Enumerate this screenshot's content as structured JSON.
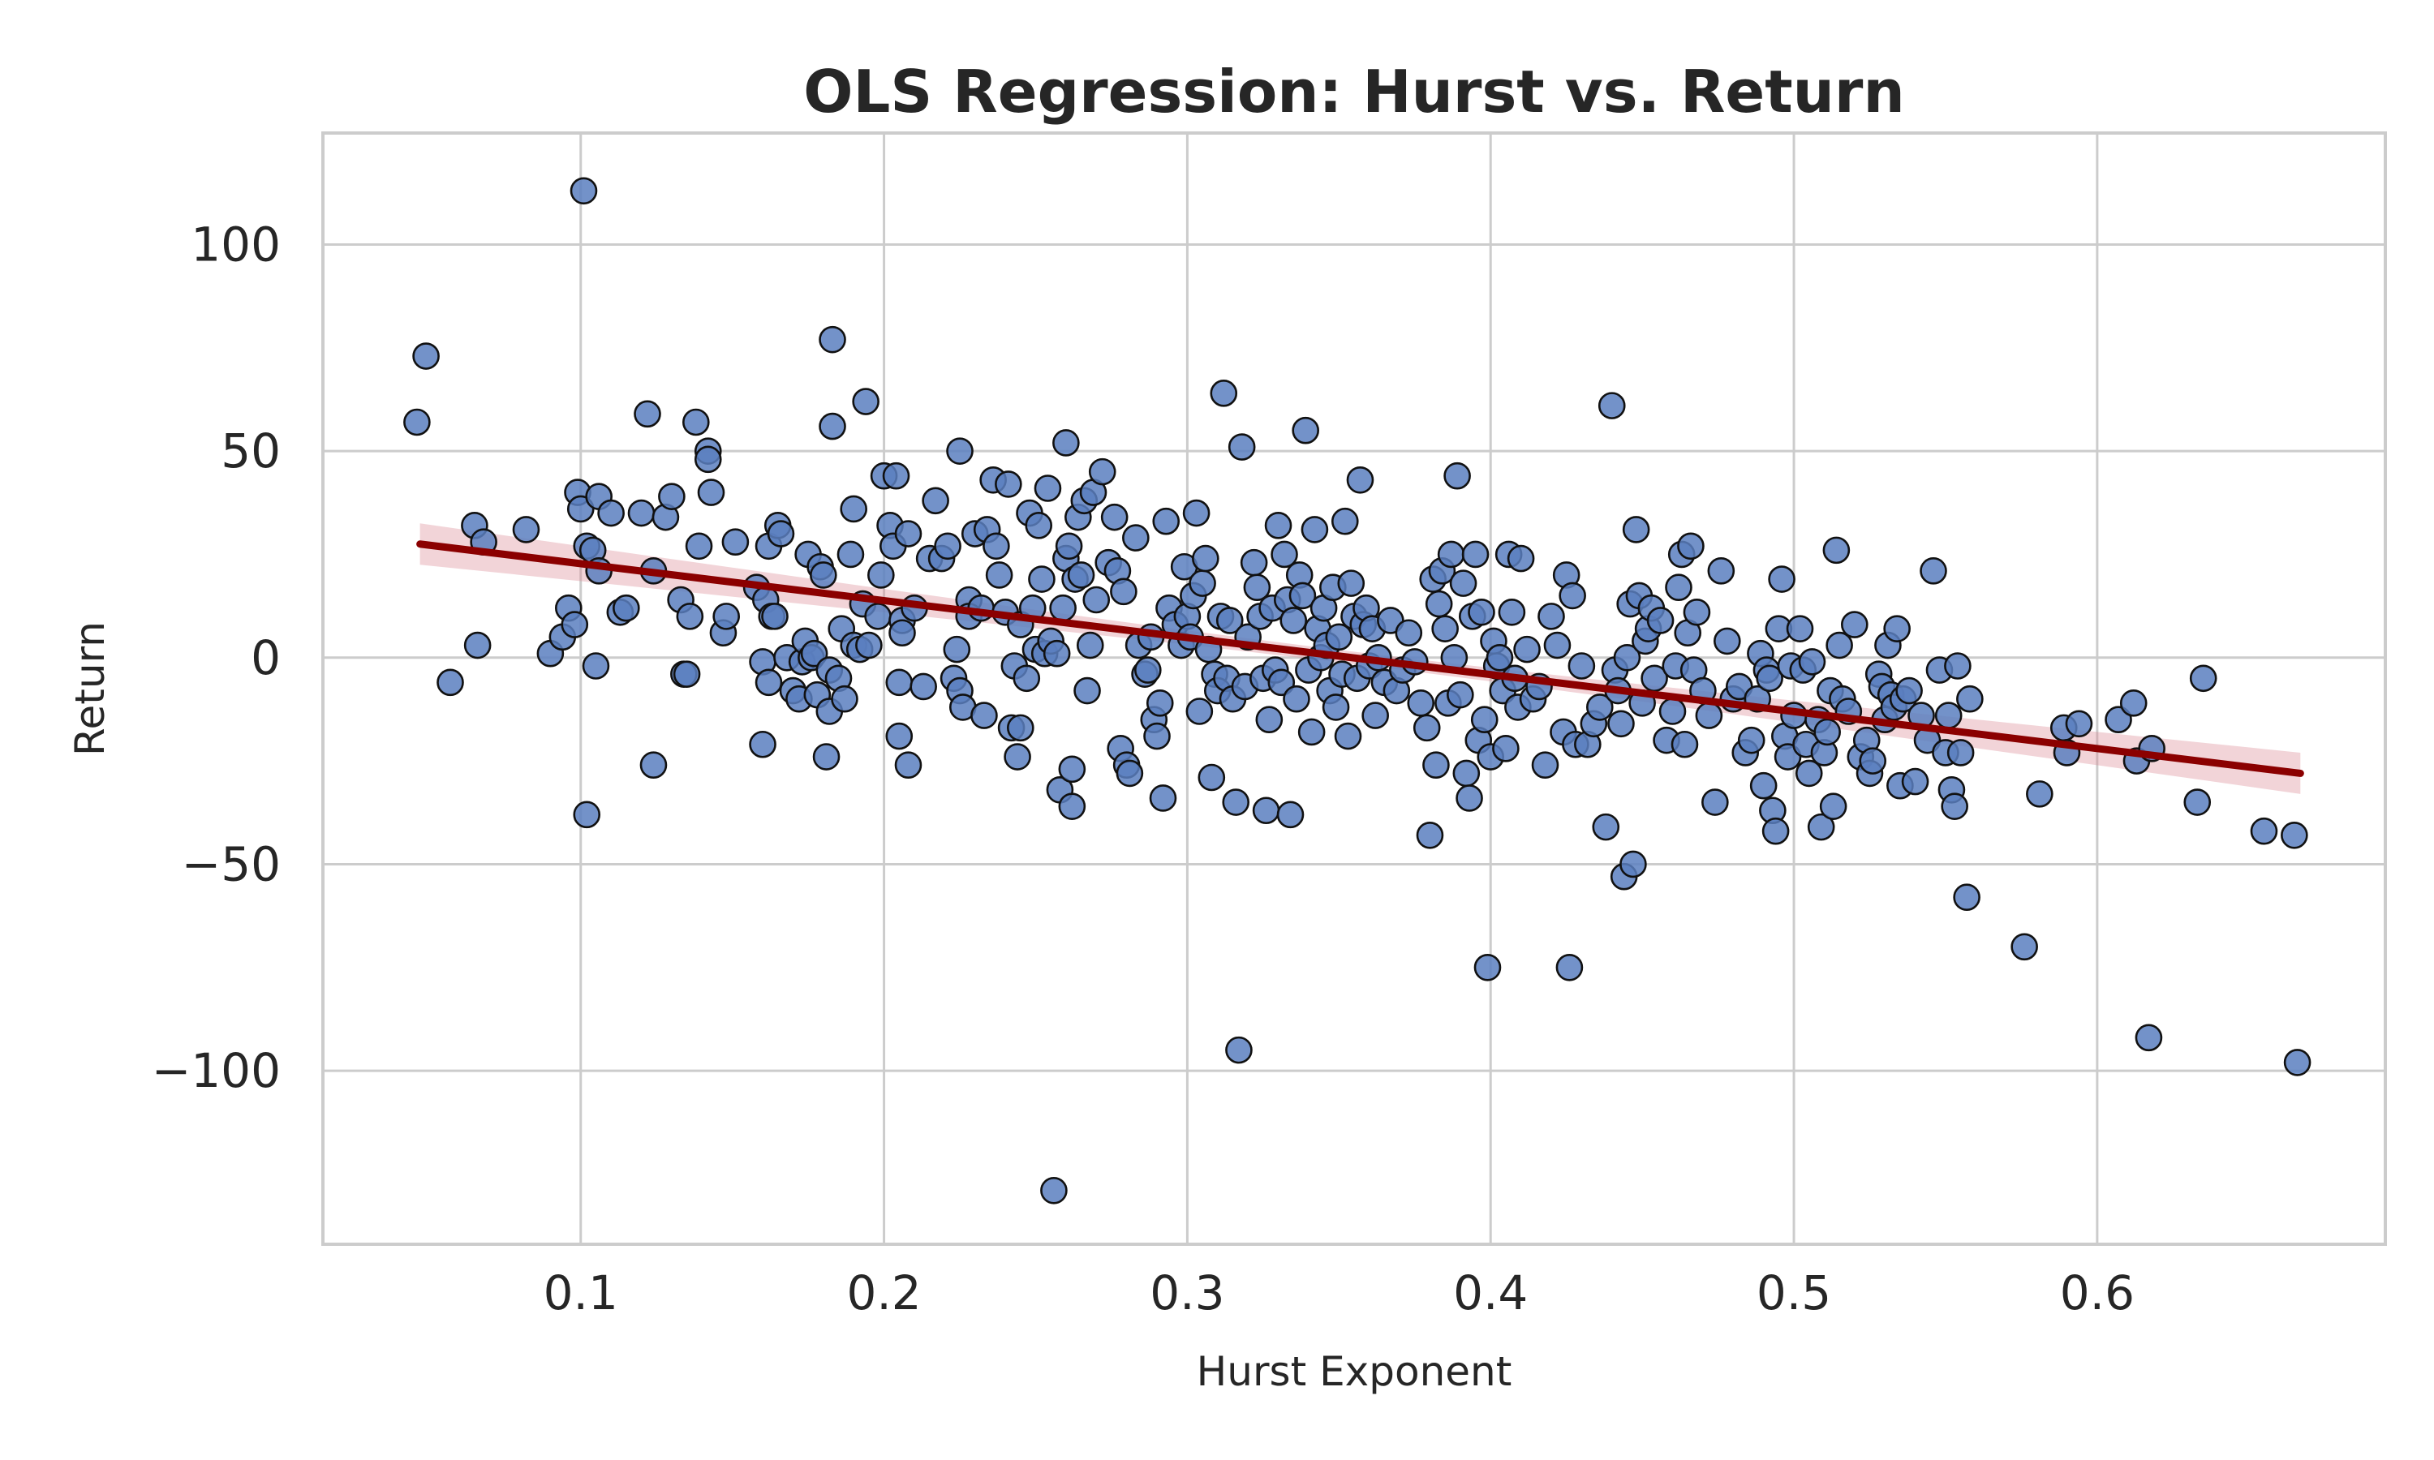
{
  "chart_data": {
    "type": "scatter",
    "title": "OLS Regression: Hurst vs. Return",
    "xlabel": "Hurst Exponent",
    "ylabel": "Return",
    "xlim": [
      0.015,
      0.695
    ],
    "ylim": [
      -142,
      127
    ],
    "x_ticks": [
      0.1,
      0.2,
      0.3,
      0.4,
      0.5,
      0.6
    ],
    "x_tick_labels": [
      "0.1",
      "0.2",
      "0.3",
      "0.4",
      "0.5",
      "0.6"
    ],
    "y_ticks": [
      100,
      50,
      0,
      -50,
      -100
    ],
    "y_tick_labels": [
      "100",
      "50",
      "0",
      "−50",
      "−100"
    ],
    "grid": true,
    "marker_color": "#5b7fbf",
    "marker_edge_color": "#111111",
    "fit_color": "#8b0000",
    "band_color": "#d9858f",
    "regression": {
      "x": [
        0.047,
        0.667
      ],
      "y": [
        27.5,
        -28.0
      ],
      "ci_halfwidth_ends": 5,
      "ci_halfwidth_mid": 1.5
    },
    "points": [
      [
        0.046,
        57
      ],
      [
        0.049,
        73
      ],
      [
        0.057,
        -6
      ],
      [
        0.065,
        32
      ],
      [
        0.066,
        3
      ],
      [
        0.068,
        28
      ],
      [
        0.082,
        31
      ],
      [
        0.09,
        1
      ],
      [
        0.094,
        5
      ],
      [
        0.096,
        12
      ],
      [
        0.098,
        8
      ],
      [
        0.099,
        40
      ],
      [
        0.1,
        36
      ],
      [
        0.101,
        113
      ],
      [
        0.102,
        27
      ],
      [
        0.102,
        -38
      ],
      [
        0.104,
        26
      ],
      [
        0.105,
        -2
      ],
      [
        0.106,
        39
      ],
      [
        0.106,
        21
      ],
      [
        0.11,
        35
      ],
      [
        0.113,
        11
      ],
      [
        0.115,
        12
      ],
      [
        0.12,
        35
      ],
      [
        0.122,
        59
      ],
      [
        0.124,
        21
      ],
      [
        0.124,
        -26
      ],
      [
        0.128,
        34
      ],
      [
        0.13,
        39
      ],
      [
        0.133,
        14
      ],
      [
        0.134,
        -4
      ],
      [
        0.135,
        -4
      ],
      [
        0.136,
        10
      ],
      [
        0.138,
        57
      ],
      [
        0.139,
        27
      ],
      [
        0.142,
        50
      ],
      [
        0.142,
        48
      ],
      [
        0.143,
        40
      ],
      [
        0.147,
        6
      ],
      [
        0.148,
        10
      ],
      [
        0.151,
        28
      ],
      [
        0.158,
        17
      ],
      [
        0.16,
        -1
      ],
      [
        0.16,
        -21
      ],
      [
        0.161,
        14
      ],
      [
        0.162,
        27
      ],
      [
        0.162,
        -6
      ],
      [
        0.163,
        10
      ],
      [
        0.164,
        10
      ],
      [
        0.165,
        32
      ],
      [
        0.166,
        30
      ],
      [
        0.168,
        0
      ],
      [
        0.17,
        -8
      ],
      [
        0.172,
        -10
      ],
      [
        0.173,
        -1
      ],
      [
        0.174,
        4
      ],
      [
        0.175,
        25
      ],
      [
        0.176,
        0
      ],
      [
        0.177,
        1
      ],
      [
        0.178,
        -9
      ],
      [
        0.179,
        22
      ],
      [
        0.18,
        20
      ],
      [
        0.181,
        -24
      ],
      [
        0.182,
        -3
      ],
      [
        0.182,
        -13
      ],
      [
        0.183,
        77
      ],
      [
        0.183,
        56
      ],
      [
        0.185,
        -5
      ],
      [
        0.186,
        7
      ],
      [
        0.187,
        -10
      ],
      [
        0.189,
        25
      ],
      [
        0.19,
        36
      ],
      [
        0.19,
        3
      ],
      [
        0.192,
        2
      ],
      [
        0.193,
        13
      ],
      [
        0.194,
        62
      ],
      [
        0.195,
        3
      ],
      [
        0.198,
        10
      ],
      [
        0.199,
        20
      ],
      [
        0.2,
        44
      ],
      [
        0.202,
        32
      ],
      [
        0.203,
        27
      ],
      [
        0.204,
        44
      ],
      [
        0.205,
        -6
      ],
      [
        0.205,
        -19
      ],
      [
        0.206,
        9
      ],
      [
        0.206,
        6
      ],
      [
        0.208,
        30
      ],
      [
        0.208,
        -26
      ],
      [
        0.21,
        12
      ],
      [
        0.213,
        -7
      ],
      [
        0.215,
        24
      ],
      [
        0.217,
        38
      ],
      [
        0.219,
        24
      ],
      [
        0.221,
        27
      ],
      [
        0.223,
        -5
      ],
      [
        0.224,
        2
      ],
      [
        0.225,
        50
      ],
      [
        0.225,
        -8
      ],
      [
        0.226,
        -12
      ],
      [
        0.228,
        14
      ],
      [
        0.228,
        10
      ],
      [
        0.23,
        30
      ],
      [
        0.232,
        12
      ],
      [
        0.233,
        -14
      ],
      [
        0.234,
        31
      ],
      [
        0.236,
        43
      ],
      [
        0.237,
        27
      ],
      [
        0.238,
        20
      ],
      [
        0.24,
        11
      ],
      [
        0.241,
        42
      ],
      [
        0.242,
        -17
      ],
      [
        0.243,
        -2
      ],
      [
        0.244,
        -24
      ],
      [
        0.245,
        -17
      ],
      [
        0.245,
        8
      ],
      [
        0.247,
        -5
      ],
      [
        0.248,
        35
      ],
      [
        0.249,
        12
      ],
      [
        0.25,
        2
      ],
      [
        0.251,
        32
      ],
      [
        0.252,
        19
      ],
      [
        0.253,
        1
      ],
      [
        0.254,
        41
      ],
      [
        0.255,
        4
      ],
      [
        0.256,
        -129
      ],
      [
        0.257,
        1
      ],
      [
        0.258,
        -32
      ],
      [
        0.259,
        12
      ],
      [
        0.26,
        52
      ],
      [
        0.26,
        24
      ],
      [
        0.261,
        27
      ],
      [
        0.262,
        -36
      ],
      [
        0.262,
        -27
      ],
      [
        0.263,
        19
      ],
      [
        0.264,
        34
      ],
      [
        0.265,
        20
      ],
      [
        0.266,
        38
      ],
      [
        0.267,
        -8
      ],
      [
        0.268,
        3
      ],
      [
        0.269,
        40
      ],
      [
        0.27,
        14
      ],
      [
        0.272,
        45
      ],
      [
        0.274,
        23
      ],
      [
        0.276,
        34
      ],
      [
        0.277,
        21
      ],
      [
        0.278,
        -22
      ],
      [
        0.279,
        16
      ],
      [
        0.28,
        -26
      ],
      [
        0.281,
        -28
      ],
      [
        0.283,
        29
      ],
      [
        0.284,
        3
      ],
      [
        0.286,
        -4
      ],
      [
        0.287,
        -3
      ],
      [
        0.288,
        5
      ],
      [
        0.289,
        -15
      ],
      [
        0.29,
        -19
      ],
      [
        0.291,
        -11
      ],
      [
        0.292,
        -34
      ],
      [
        0.293,
        33
      ],
      [
        0.294,
        12
      ],
      [
        0.296,
        8
      ],
      [
        0.298,
        3
      ],
      [
        0.299,
        22
      ],
      [
        0.3,
        10
      ],
      [
        0.301,
        5
      ],
      [
        0.302,
        15
      ],
      [
        0.303,
        35
      ],
      [
        0.304,
        -13
      ],
      [
        0.305,
        18
      ],
      [
        0.306,
        24
      ],
      [
        0.307,
        2
      ],
      [
        0.308,
        -29
      ],
      [
        0.309,
        -4
      ],
      [
        0.31,
        -8
      ],
      [
        0.311,
        10
      ],
      [
        0.312,
        64
      ],
      [
        0.313,
        -5
      ],
      [
        0.314,
        9
      ],
      [
        0.315,
        -10
      ],
      [
        0.316,
        -35
      ],
      [
        0.317,
        -95
      ],
      [
        0.318,
        51
      ],
      [
        0.319,
        -7
      ],
      [
        0.32,
        5
      ],
      [
        0.322,
        23
      ],
      [
        0.323,
        17
      ],
      [
        0.324,
        10
      ],
      [
        0.325,
        -5
      ],
      [
        0.326,
        -37
      ],
      [
        0.327,
        -15
      ],
      [
        0.328,
        12
      ],
      [
        0.329,
        -3
      ],
      [
        0.33,
        32
      ],
      [
        0.331,
        -6
      ],
      [
        0.332,
        25
      ],
      [
        0.333,
        14
      ],
      [
        0.334,
        -38
      ],
      [
        0.335,
        9
      ],
      [
        0.336,
        -10
      ],
      [
        0.337,
        20
      ],
      [
        0.338,
        15
      ],
      [
        0.339,
        55
      ],
      [
        0.34,
        -3
      ],
      [
        0.341,
        -18
      ],
      [
        0.342,
        31
      ],
      [
        0.343,
        7
      ],
      [
        0.344,
        0
      ],
      [
        0.345,
        12
      ],
      [
        0.346,
        3
      ],
      [
        0.347,
        -8
      ],
      [
        0.348,
        17
      ],
      [
        0.349,
        -12
      ],
      [
        0.35,
        5
      ],
      [
        0.351,
        -4
      ],
      [
        0.352,
        33
      ],
      [
        0.353,
        -19
      ],
      [
        0.354,
        18
      ],
      [
        0.355,
        10
      ],
      [
        0.356,
        -5
      ],
      [
        0.357,
        43
      ],
      [
        0.358,
        8
      ],
      [
        0.359,
        12
      ],
      [
        0.36,
        -2
      ],
      [
        0.361,
        7
      ],
      [
        0.362,
        -14
      ],
      [
        0.363,
        0
      ],
      [
        0.365,
        -6
      ],
      [
        0.367,
        9
      ],
      [
        0.369,
        -8
      ],
      [
        0.371,
        -3
      ],
      [
        0.373,
        6
      ],
      [
        0.375,
        -1
      ],
      [
        0.377,
        -11
      ],
      [
        0.379,
        -17
      ],
      [
        0.38,
        -43
      ],
      [
        0.381,
        19
      ],
      [
        0.382,
        -26
      ],
      [
        0.383,
        13
      ],
      [
        0.384,
        21
      ],
      [
        0.385,
        7
      ],
      [
        0.386,
        -11
      ],
      [
        0.387,
        25
      ],
      [
        0.388,
        0
      ],
      [
        0.389,
        44
      ],
      [
        0.39,
        -9
      ],
      [
        0.391,
        18
      ],
      [
        0.392,
        -28
      ],
      [
        0.393,
        -34
      ],
      [
        0.394,
        10
      ],
      [
        0.395,
        25
      ],
      [
        0.396,
        -20
      ],
      [
        0.397,
        11
      ],
      [
        0.398,
        -15
      ],
      [
        0.399,
        -75
      ],
      [
        0.4,
        -24
      ],
      [
        0.401,
        4
      ],
      [
        0.402,
        -2
      ],
      [
        0.403,
        0
      ],
      [
        0.404,
        -8
      ],
      [
        0.405,
        -22
      ],
      [
        0.406,
        25
      ],
      [
        0.407,
        11
      ],
      [
        0.408,
        -5
      ],
      [
        0.409,
        -12
      ],
      [
        0.41,
        24
      ],
      [
        0.412,
        2
      ],
      [
        0.414,
        -10
      ],
      [
        0.416,
        -7
      ],
      [
        0.418,
        -26
      ],
      [
        0.42,
        10
      ],
      [
        0.422,
        3
      ],
      [
        0.424,
        -18
      ],
      [
        0.425,
        20
      ],
      [
        0.426,
        -75
      ],
      [
        0.427,
        15
      ],
      [
        0.428,
        -21
      ],
      [
        0.43,
        -2
      ],
      [
        0.432,
        -21
      ],
      [
        0.434,
        -16
      ],
      [
        0.436,
        -12
      ],
      [
        0.438,
        -41
      ],
      [
        0.44,
        61
      ],
      [
        0.441,
        -3
      ],
      [
        0.442,
        -8
      ],
      [
        0.443,
        -16
      ],
      [
        0.444,
        -53
      ],
      [
        0.445,
        0
      ],
      [
        0.446,
        13
      ],
      [
        0.447,
        -50
      ],
      [
        0.448,
        31
      ],
      [
        0.449,
        15
      ],
      [
        0.45,
        -11
      ],
      [
        0.451,
        4
      ],
      [
        0.452,
        7
      ],
      [
        0.453,
        12
      ],
      [
        0.454,
        -5
      ],
      [
        0.456,
        9
      ],
      [
        0.458,
        -20
      ],
      [
        0.46,
        -13
      ],
      [
        0.461,
        -2
      ],
      [
        0.462,
        17
      ],
      [
        0.463,
        25
      ],
      [
        0.464,
        -21
      ],
      [
        0.465,
        6
      ],
      [
        0.466,
        27
      ],
      [
        0.467,
        -3
      ],
      [
        0.468,
        11
      ],
      [
        0.47,
        -8
      ],
      [
        0.472,
        -14
      ],
      [
        0.474,
        -35
      ],
      [
        0.476,
        21
      ],
      [
        0.478,
        4
      ],
      [
        0.48,
        -10
      ],
      [
        0.482,
        -7
      ],
      [
        0.484,
        -23
      ],
      [
        0.486,
        -20
      ],
      [
        0.488,
        -10
      ],
      [
        0.489,
        1
      ],
      [
        0.49,
        -31
      ],
      [
        0.491,
        -3
      ],
      [
        0.492,
        -5
      ],
      [
        0.493,
        -37
      ],
      [
        0.494,
        -42
      ],
      [
        0.495,
        7
      ],
      [
        0.496,
        19
      ],
      [
        0.497,
        -19
      ],
      [
        0.498,
        -24
      ],
      [
        0.499,
        -2
      ],
      [
        0.5,
        -14
      ],
      [
        0.502,
        7
      ],
      [
        0.503,
        -3
      ],
      [
        0.504,
        -21
      ],
      [
        0.505,
        -28
      ],
      [
        0.506,
        -1
      ],
      [
        0.508,
        -15
      ],
      [
        0.509,
        -41
      ],
      [
        0.51,
        -23
      ],
      [
        0.511,
        -18
      ],
      [
        0.512,
        -8
      ],
      [
        0.513,
        -36
      ],
      [
        0.514,
        26
      ],
      [
        0.515,
        3
      ],
      [
        0.516,
        -10
      ],
      [
        0.518,
        -13
      ],
      [
        0.52,
        8
      ],
      [
        0.522,
        -24
      ],
      [
        0.524,
        -20
      ],
      [
        0.525,
        -28
      ],
      [
        0.526,
        -25
      ],
      [
        0.528,
        -4
      ],
      [
        0.529,
        -7
      ],
      [
        0.53,
        -15
      ],
      [
        0.531,
        3
      ],
      [
        0.532,
        -9
      ],
      [
        0.533,
        -12
      ],
      [
        0.534,
        7
      ],
      [
        0.535,
        -31
      ],
      [
        0.536,
        -10
      ],
      [
        0.538,
        -8
      ],
      [
        0.54,
        -30
      ],
      [
        0.542,
        -14
      ],
      [
        0.544,
        -20
      ],
      [
        0.546,
        21
      ],
      [
        0.548,
        -3
      ],
      [
        0.55,
        -23
      ],
      [
        0.551,
        -14
      ],
      [
        0.552,
        -32
      ],
      [
        0.553,
        -36
      ],
      [
        0.554,
        -2
      ],
      [
        0.555,
        -23
      ],
      [
        0.557,
        -58
      ],
      [
        0.558,
        -10
      ],
      [
        0.576,
        -70
      ],
      [
        0.581,
        -33
      ],
      [
        0.589,
        -17
      ],
      [
        0.59,
        -23
      ],
      [
        0.594,
        -16
      ],
      [
        0.607,
        -15
      ],
      [
        0.612,
        -11
      ],
      [
        0.613,
        -25
      ],
      [
        0.617,
        -92
      ],
      [
        0.618,
        -22
      ],
      [
        0.633,
        -35
      ],
      [
        0.635,
        -5
      ],
      [
        0.655,
        -42
      ],
      [
        0.665,
        -43
      ],
      [
        0.666,
        -98
      ]
    ]
  }
}
